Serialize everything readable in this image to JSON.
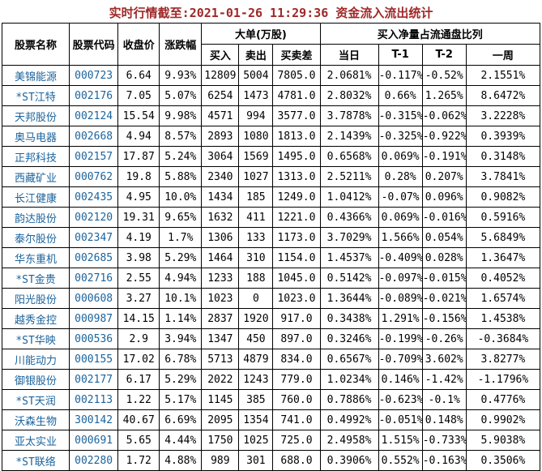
{
  "title": "实时行情截至:2021-01-26 11:29:36 资金流入流出统计",
  "table": {
    "groups": {
      "large_orders": "大单(万股)",
      "net_buy_ratio": "买入净量占流通盘比列"
    },
    "headers": [
      "股票名称",
      "股票代码",
      "收盘价",
      "涨跌幅",
      "买入",
      "卖出",
      "买卖差",
      "当日",
      "T-1",
      "T-2",
      "一周"
    ],
    "rows": [
      [
        "美锦能源",
        "000723",
        "6.64",
        "9.93%",
        "12809",
        "5004",
        "7805.0",
        "2.0681%",
        "-0.117%",
        "-0.52%",
        "2.1551%"
      ],
      [
        "*ST江特",
        "002176",
        "7.05",
        "5.07%",
        "6254",
        "1473",
        "4781.0",
        "2.8032%",
        "0.66%",
        "1.265%",
        "8.6472%"
      ],
      [
        "天邦股份",
        "002124",
        "15.54",
        "9.98%",
        "4571",
        "994",
        "3577.0",
        "3.7878%",
        "-0.315%",
        "-0.062%",
        "3.2228%"
      ],
      [
        "奥马电器",
        "002668",
        "4.94",
        "8.57%",
        "2893",
        "1080",
        "1813.0",
        "2.1439%",
        "-0.325%",
        "-0.922%",
        "0.3939%"
      ],
      [
        "正邦科技",
        "002157",
        "17.87",
        "5.24%",
        "3064",
        "1569",
        "1495.0",
        "0.6568%",
        "0.069%",
        "-0.191%",
        "0.3148%"
      ],
      [
        "西藏矿业",
        "000762",
        "19.8",
        "5.88%",
        "2340",
        "1027",
        "1313.0",
        "2.5211%",
        "0.28%",
        "0.207%",
        "3.7841%"
      ],
      [
        "长江健康",
        "002435",
        "4.95",
        "10.0%",
        "1434",
        "185",
        "1249.0",
        "1.0412%",
        "-0.07%",
        "0.096%",
        "0.9082%"
      ],
      [
        "韵达股份",
        "002120",
        "19.31",
        "9.65%",
        "1632",
        "411",
        "1221.0",
        "0.4366%",
        "0.069%",
        "-0.016%",
        "0.5916%"
      ],
      [
        "泰尔股份",
        "002347",
        "4.19",
        "1.7%",
        "1306",
        "133",
        "1173.0",
        "3.7029%",
        "1.566%",
        "0.054%",
        "5.6849%"
      ],
      [
        "华东重机",
        "002685",
        "3.98",
        "5.29%",
        "1464",
        "310",
        "1154.0",
        "1.4537%",
        "-0.409%",
        "0.028%",
        "1.3647%"
      ],
      [
        "*ST金贵",
        "002716",
        "2.55",
        "4.94%",
        "1233",
        "188",
        "1045.0",
        "0.5142%",
        "-0.097%",
        "-0.015%",
        "0.4052%"
      ],
      [
        "阳光股份",
        "000608",
        "3.27",
        "10.1%",
        "1023",
        "0",
        "1023.0",
        "1.3644%",
        "-0.089%",
        "-0.021%",
        "1.6574%"
      ],
      [
        "越秀金控",
        "000987",
        "14.15",
        "1.14%",
        "2837",
        "1920",
        "917.0",
        "0.3438%",
        "1.291%",
        "-0.156%",
        "1.4538%"
      ],
      [
        "*ST华映",
        "000536",
        "2.9",
        "3.94%",
        "1347",
        "450",
        "897.0",
        "0.3246%",
        "-0.199%",
        "-0.26%",
        "-0.3684%"
      ],
      [
        "川能动力",
        "000155",
        "17.02",
        "6.78%",
        "5713",
        "4879",
        "834.0",
        "0.6567%",
        "-0.709%",
        "3.602%",
        "3.8277%"
      ],
      [
        "御银股份",
        "002177",
        "6.17",
        "5.29%",
        "2022",
        "1243",
        "779.0",
        "1.0234%",
        "0.146%",
        "-1.42%",
        "-1.1796%"
      ],
      [
        "*ST天润",
        "002113",
        "1.22",
        "5.17%",
        "1145",
        "385",
        "760.0",
        "0.7886%",
        "-0.623%",
        "-0.1%",
        "0.4776%"
      ],
      [
        "沃森生物",
        "300142",
        "40.67",
        "6.69%",
        "2095",
        "1354",
        "741.0",
        "0.4992%",
        "-0.051%",
        "0.148%",
        "0.9902%"
      ],
      [
        "亚太实业",
        "000691",
        "5.65",
        "4.44%",
        "1750",
        "1025",
        "725.0",
        "2.4958%",
        "1.515%",
        "-0.733%",
        "5.9038%"
      ],
      [
        "*ST联络",
        "002280",
        "1.72",
        "4.88%",
        "989",
        "301",
        "688.0",
        "0.3906%",
        "0.552%",
        "-0.163%",
        "0.3506%"
      ]
    ]
  },
  "colors": {
    "title_text": "#a02828",
    "stock_link_text": "#1b639c",
    "border": "#000000",
    "background": "#ffffff"
  }
}
